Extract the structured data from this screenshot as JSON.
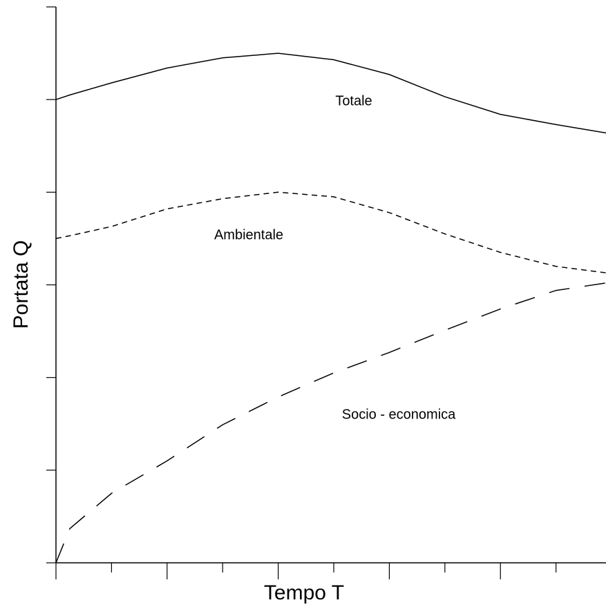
{
  "chart_data": {
    "type": "line",
    "x_label": "Tempo T",
    "y_label": "Portata Q",
    "x": [
      0,
      0.25,
      1,
      2,
      3,
      4,
      5,
      6,
      7,
      8,
      9,
      9.9
    ],
    "series": [
      {
        "name": "Totale",
        "color": "#000000",
        "dash": "solid",
        "values": [
          5.0,
          5.05,
          5.18,
          5.34,
          5.45,
          5.5,
          5.43,
          5.27,
          5.03,
          4.84,
          4.73,
          4.64
        ]
      },
      {
        "name": "Ambientale",
        "color": "#000000",
        "dash": "short",
        "values": [
          3.5,
          3.53,
          3.63,
          3.82,
          3.93,
          4.0,
          3.95,
          3.78,
          3.55,
          3.35,
          3.2,
          3.13
        ]
      },
      {
        "name": "Socio -  economica",
        "color": "#000000",
        "dash": "long",
        "values": [
          0,
          0.37,
          0.75,
          1.1,
          1.49,
          1.79,
          2.05,
          2.27,
          2.51,
          2.74,
          2.94,
          3.02
        ]
      }
    ],
    "xlim": [
      0,
      9.9
    ],
    "ylim": [
      0,
      6
    ],
    "xticks": [
      0,
      1,
      2,
      3,
      4,
      5,
      6,
      7,
      8,
      9
    ],
    "yticks": [
      0,
      1,
      2,
      3,
      4,
      5,
      6
    ]
  }
}
